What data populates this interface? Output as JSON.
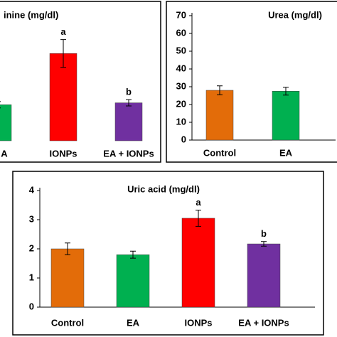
{
  "chart_data": [
    {
      "type": "bar",
      "title": "inine (mg/dl)",
      "categories": [
        "A",
        "IONPs",
        "EA + IONPs"
      ],
      "values": [
        0.57,
        1.38,
        0.6
      ],
      "errors": [
        0.05,
        0.22,
        0.05
      ],
      "colors": [
        "#00b050",
        "#ff0000",
        "#7030a0"
      ],
      "letters": [
        null,
        "a",
        "b"
      ],
      "ylim": [
        0,
        2
      ]
    },
    {
      "type": "bar",
      "title": "Urea (mg/dl)",
      "categories": [
        "Control",
        "EA"
      ],
      "values": [
        28,
        27.5
      ],
      "errors": [
        2.5,
        2.2
      ],
      "colors": [
        "#e36c09",
        "#00b050"
      ],
      "letters": [
        null,
        null
      ],
      "ylim": [
        0,
        70
      ],
      "yticks": [
        0,
        10,
        20,
        30,
        40,
        50,
        60,
        70
      ]
    },
    {
      "type": "bar",
      "title": "Uric acid (mg/dl)",
      "categories": [
        "Control",
        "EA",
        "IONPs",
        "EA + IONPs"
      ],
      "values": [
        2.0,
        1.8,
        3.05,
        2.17
      ],
      "errors": [
        0.2,
        0.12,
        0.28,
        0.08
      ],
      "colors": [
        "#e36c09",
        "#00b050",
        "#ff0000",
        "#7030a0"
      ],
      "letters": [
        null,
        null,
        "a",
        "b"
      ],
      "ylim": [
        0,
        4
      ],
      "yticks": [
        0,
        1,
        2,
        3,
        4
      ]
    }
  ]
}
